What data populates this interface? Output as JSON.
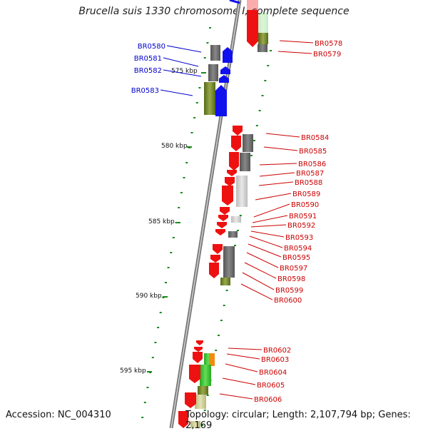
{
  "title": "Brucella suis 1330 chromosome I, complete sequence",
  "footer": {
    "accession": "Accession: NC_004310",
    "summary": "Topology: circular; Length: 2,107,794 bp; Genes: 2,169"
  },
  "colors": {
    "forward_label": "#0000cc",
    "reverse_label": "#cc0000",
    "forward_gene": "#1111ee",
    "reverse_gene": "#ee1111",
    "backbone": "#888888",
    "tick": "#1a8a1a"
  },
  "scale_ticks": [
    "575 kbp",
    "580 kbp",
    "585 kbp",
    "590 kbp",
    "595 kbp"
  ],
  "forward_labels": [
    "BR0580",
    "BR0581",
    "BR0582",
    "BR0583"
  ],
  "reverse_labels": [
    "BR0578",
    "BR0579",
    "BR0584",
    "BR0585",
    "BR0586",
    "BR0587",
    "BR0588",
    "BR0589",
    "BR0590",
    "BR0591",
    "BR0592",
    "BR0593",
    "BR0594",
    "BR0595",
    "BR0597",
    "BR0598",
    "BR0599",
    "BR0600",
    "BR0602",
    "BR0603",
    "BR0604",
    "BR0605",
    "BR0606"
  ]
}
